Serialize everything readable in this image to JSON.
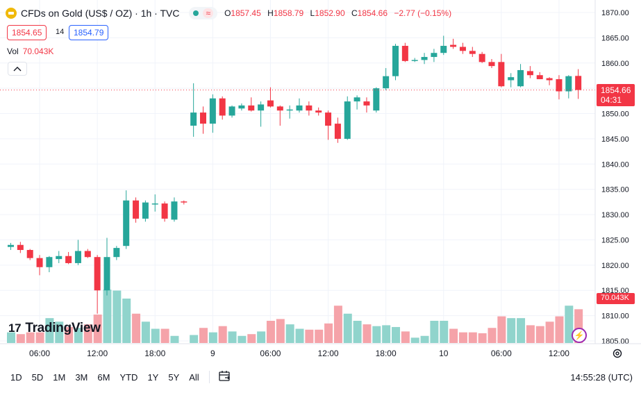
{
  "header": {
    "title": "CFDs on Gold (US$ / OZ) · 1h · TVC",
    "ohlc": [
      {
        "key": "O",
        "value": "1857.45"
      },
      {
        "key": "H",
        "value": "1858.79"
      },
      {
        "key": "L",
        "value": "1852.90"
      },
      {
        "key": "C",
        "value": "1854.66"
      }
    ],
    "change": "−2.77 (−0.15%)",
    "sell_price": "1854.65",
    "spread": "14",
    "buy_price": "1854.79",
    "volume_label": "Vol",
    "volume_value": "70.043K",
    "status_icon": "wave-icon"
  },
  "watermark": {
    "text": "TradingView",
    "mark": "17"
  },
  "last_price_label": {
    "price": "1854.66",
    "countdown": "04:31"
  },
  "volume_price_label": "70.043K",
  "bottom_bar": {
    "ranges": [
      "1D",
      "5D",
      "1M",
      "3M",
      "6M",
      "YTD",
      "1Y",
      "5Y",
      "All"
    ],
    "clock": "14:55:28 (UTC)"
  },
  "colors": {
    "up": "#26a69a",
    "down": "#f23645",
    "vol_up": "#90d4cc",
    "vol_down": "#f5a3a9",
    "grid": "#f0f3fa"
  },
  "chart_data": {
    "type": "candlestick",
    "y_axis": {
      "range": [
        1805,
        1870
      ],
      "ticks": [
        "1805.00",
        "1810.00",
        "1815.00",
        "1820.00",
        "1825.00",
        "1830.00",
        "1835.00",
        "1840.00",
        "1845.00",
        "1850.00",
        "1855.00",
        "1860.00",
        "1865.00",
        "1870.00"
      ]
    },
    "x_ticks": [
      {
        "label": "06:00",
        "index": 3
      },
      {
        "label": "12:00",
        "index": 9
      },
      {
        "label": "18:00",
        "index": 15
      },
      {
        "label": "9",
        "index": 21
      },
      {
        "label": "06:00",
        "index": 27
      },
      {
        "label": "12:00",
        "index": 33
      },
      {
        "label": "18:00",
        "index": 39
      },
      {
        "label": "10",
        "index": 45
      },
      {
        "label": "06:00",
        "index": 51
      },
      {
        "label": "12:00",
        "index": 57
      }
    ],
    "last_price": 1854.66,
    "candles": [
      {
        "i": 0,
        "o": 1823.6,
        "h": 1824.4,
        "l": 1823.0,
        "c": 1824.0
      },
      {
        "i": 1,
        "o": 1824.0,
        "h": 1824.6,
        "l": 1822.4,
        "c": 1823.0
      },
      {
        "i": 2,
        "o": 1823.0,
        "h": 1823.2,
        "l": 1821.0,
        "c": 1821.4
      },
      {
        "i": 3,
        "o": 1821.4,
        "h": 1822.0,
        "l": 1818.0,
        "c": 1819.6
      },
      {
        "i": 4,
        "o": 1819.6,
        "h": 1821.8,
        "l": 1818.6,
        "c": 1821.6
      },
      {
        "i": 5,
        "o": 1821.2,
        "h": 1822.8,
        "l": 1820.4,
        "c": 1821.8
      },
      {
        "i": 6,
        "o": 1821.8,
        "h": 1822.6,
        "l": 1820.2,
        "c": 1820.4
      },
      {
        "i": 7,
        "o": 1820.4,
        "h": 1825.0,
        "l": 1820.0,
        "c": 1822.8
      },
      {
        "i": 8,
        "o": 1822.8,
        "h": 1823.2,
        "l": 1821.4,
        "c": 1821.6
      },
      {
        "i": 9,
        "o": 1821.6,
        "h": 1822.0,
        "l": 1810.4,
        "c": 1815.0
      },
      {
        "i": 10,
        "o": 1815.0,
        "h": 1825.4,
        "l": 1814.0,
        "c": 1821.6
      },
      {
        "i": 11,
        "o": 1821.6,
        "h": 1823.8,
        "l": 1821.0,
        "c": 1823.4
      },
      {
        "i": 12,
        "o": 1823.8,
        "h": 1834.8,
        "l": 1823.2,
        "c": 1832.8
      },
      {
        "i": 13,
        "o": 1832.8,
        "h": 1833.4,
        "l": 1828.4,
        "c": 1829.2
      },
      {
        "i": 14,
        "o": 1829.2,
        "h": 1832.8,
        "l": 1828.6,
        "c": 1832.4
      },
      {
        "i": 15,
        "o": 1832.0,
        "h": 1834.0,
        "l": 1830.6,
        "c": 1832.2
      },
      {
        "i": 16,
        "o": 1832.2,
        "h": 1832.6,
        "l": 1828.6,
        "c": 1829.2
      },
      {
        "i": 17,
        "o": 1829.0,
        "h": 1833.4,
        "l": 1828.6,
        "c": 1832.6
      },
      {
        "i": 18,
        "o": 1832.6,
        "h": 1832.8,
        "l": 1832.0,
        "c": 1832.4
      },
      {
        "i": 19,
        "o": 1847.6,
        "h": 1856.0,
        "l": 1845.4,
        "c": 1850.2
      },
      {
        "i": 20,
        "o": 1850.2,
        "h": 1851.4,
        "l": 1846.0,
        "c": 1848.0
      },
      {
        "i": 21,
        "o": 1848.0,
        "h": 1853.8,
        "l": 1846.2,
        "c": 1853.0
      },
      {
        "i": 22,
        "o": 1853.0,
        "h": 1853.4,
        "l": 1848.8,
        "c": 1849.6
      },
      {
        "i": 23,
        "o": 1849.6,
        "h": 1851.6,
        "l": 1849.2,
        "c": 1851.4
      },
      {
        "i": 24,
        "o": 1851.0,
        "h": 1852.0,
        "l": 1850.6,
        "c": 1851.6
      },
      {
        "i": 25,
        "o": 1851.6,
        "h": 1853.2,
        "l": 1850.4,
        "c": 1850.6
      },
      {
        "i": 26,
        "o": 1850.6,
        "h": 1852.4,
        "l": 1847.4,
        "c": 1851.8
      },
      {
        "i": 27,
        "o": 1852.6,
        "h": 1855.2,
        "l": 1851.2,
        "c": 1851.4
      },
      {
        "i": 28,
        "o": 1851.4,
        "h": 1851.6,
        "l": 1847.6,
        "c": 1850.6
      },
      {
        "i": 29,
        "o": 1850.6,
        "h": 1851.6,
        "l": 1849.0,
        "c": 1850.8
      },
      {
        "i": 30,
        "o": 1850.6,
        "h": 1853.0,
        "l": 1850.2,
        "c": 1851.6
      },
      {
        "i": 31,
        "o": 1851.6,
        "h": 1852.4,
        "l": 1849.6,
        "c": 1850.6
      },
      {
        "i": 32,
        "o": 1850.6,
        "h": 1851.2,
        "l": 1849.6,
        "c": 1850.2
      },
      {
        "i": 33,
        "o": 1850.2,
        "h": 1850.6,
        "l": 1844.8,
        "c": 1847.6
      },
      {
        "i": 34,
        "o": 1848.0,
        "h": 1849.2,
        "l": 1844.2,
        "c": 1845.0
      },
      {
        "i": 35,
        "o": 1845.0,
        "h": 1853.4,
        "l": 1844.8,
        "c": 1852.4
      },
      {
        "i": 36,
        "o": 1852.4,
        "h": 1853.6,
        "l": 1850.8,
        "c": 1853.2
      },
      {
        "i": 37,
        "o": 1852.4,
        "h": 1853.2,
        "l": 1850.2,
        "c": 1851.6
      },
      {
        "i": 38,
        "o": 1850.6,
        "h": 1855.2,
        "l": 1850.2,
        "c": 1855.0
      },
      {
        "i": 39,
        "o": 1855.0,
        "h": 1859.0,
        "l": 1854.6,
        "c": 1857.4
      },
      {
        "i": 40,
        "o": 1857.4,
        "h": 1863.8,
        "l": 1856.6,
        "c": 1863.4
      },
      {
        "i": 41,
        "o": 1863.4,
        "h": 1864.0,
        "l": 1860.2,
        "c": 1860.4
      },
      {
        "i": 42,
        "o": 1860.4,
        "h": 1861.0,
        "l": 1860.2,
        "c": 1860.6
      },
      {
        "i": 43,
        "o": 1860.6,
        "h": 1862.0,
        "l": 1859.8,
        "c": 1861.2
      },
      {
        "i": 44,
        "o": 1861.2,
        "h": 1862.8,
        "l": 1860.2,
        "c": 1862.0
      },
      {
        "i": 45,
        "o": 1862.0,
        "h": 1865.4,
        "l": 1861.6,
        "c": 1863.4
      },
      {
        "i": 46,
        "o": 1863.6,
        "h": 1864.8,
        "l": 1862.8,
        "c": 1863.2
      },
      {
        "i": 47,
        "o": 1863.2,
        "h": 1864.0,
        "l": 1861.8,
        "c": 1862.4
      },
      {
        "i": 48,
        "o": 1862.4,
        "h": 1863.2,
        "l": 1861.2,
        "c": 1861.8
      },
      {
        "i": 49,
        "o": 1861.8,
        "h": 1862.2,
        "l": 1860.0,
        "c": 1860.2
      },
      {
        "i": 50,
        "o": 1860.2,
        "h": 1860.8,
        "l": 1859.0,
        "c": 1859.4
      },
      {
        "i": 51,
        "o": 1860.2,
        "h": 1861.8,
        "l": 1855.2,
        "c": 1855.4
      },
      {
        "i": 52,
        "o": 1856.6,
        "h": 1858.0,
        "l": 1855.2,
        "c": 1857.2
      },
      {
        "i": 53,
        "o": 1855.4,
        "h": 1859.8,
        "l": 1855.2,
        "c": 1858.6
      },
      {
        "i": 54,
        "o": 1858.4,
        "h": 1859.4,
        "l": 1857.0,
        "c": 1857.6
      },
      {
        "i": 55,
        "o": 1857.6,
        "h": 1858.2,
        "l": 1856.8,
        "c": 1856.8
      },
      {
        "i": 56,
        "o": 1857.0,
        "h": 1857.2,
        "l": 1855.6,
        "c": 1856.6
      },
      {
        "i": 57,
        "o": 1856.8,
        "h": 1857.6,
        "l": 1852.8,
        "c": 1854.4
      },
      {
        "i": 58,
        "o": 1854.4,
        "h": 1857.6,
        "l": 1853.0,
        "c": 1857.4
      },
      {
        "i": 59,
        "o": 1857.45,
        "h": 1858.79,
        "l": 1852.9,
        "c": 1854.66
      }
    ],
    "volume": [
      0.12,
      0.1,
      0.12,
      0.12,
      0.28,
      0.24,
      0.18,
      0.17,
      0.21,
      0.32,
      0.6,
      0.59,
      0.5,
      0.33,
      0.24,
      0.16,
      0.16,
      0.08,
      0.0,
      0.09,
      0.17,
      0.12,
      0.19,
      0.13,
      0.08,
      0.1,
      0.13,
      0.25,
      0.27,
      0.21,
      0.16,
      0.15,
      0.15,
      0.22,
      0.42,
      0.33,
      0.25,
      0.21,
      0.19,
      0.2,
      0.18,
      0.13,
      0.06,
      0.08,
      0.25,
      0.25,
      0.16,
      0.12,
      0.12,
      0.11,
      0.17,
      0.3,
      0.28,
      0.28,
      0.2,
      0.19,
      0.24,
      0.3,
      0.42,
      0.38
    ]
  }
}
